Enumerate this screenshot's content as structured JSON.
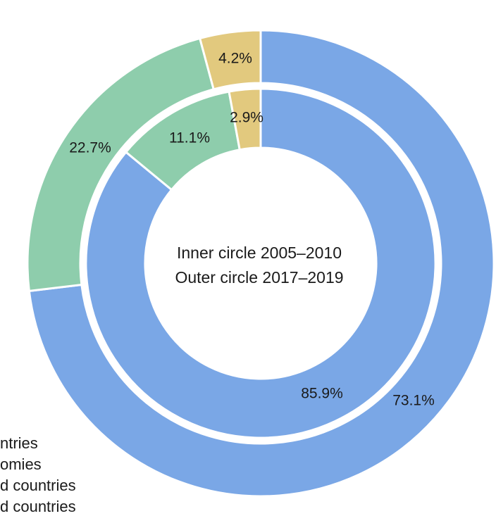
{
  "chart_data": {
    "type": "pie",
    "subtype": "donut-nested",
    "center_lines": [
      "Inner circle 2005–2010",
      "Outer circle 2017–2019"
    ],
    "rings": [
      {
        "ring": "inner",
        "slices": [
          {
            "value": 85.9,
            "label": "85.9%",
            "color": "#7aa7e6"
          },
          {
            "value": 11.1,
            "label": "11.1%",
            "color": "#8ecdac"
          },
          {
            "value": 2.9,
            "label": "2.9%",
            "color": "#e2c97e"
          }
        ]
      },
      {
        "ring": "outer",
        "slices": [
          {
            "value": 73.1,
            "label": "73.1%",
            "color": "#7aa7e6"
          },
          {
            "value": 22.7,
            "label": "22.7%",
            "color": "#8ecdac"
          },
          {
            "value": 4.2,
            "label": "4.2%",
            "color": "#e2c97e"
          }
        ]
      }
    ],
    "legend": {
      "placement": "bottom-left (cropped)",
      "items": [
        "ntries",
        "omies",
        "d countries",
        "d countries"
      ]
    }
  }
}
